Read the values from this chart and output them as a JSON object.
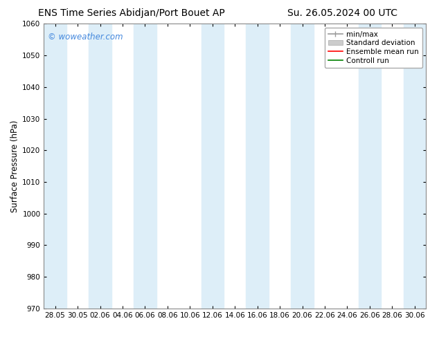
{
  "title_left": "ENS Time Series Abidjan/Port Bouet AP",
  "title_right": "Su. 26.05.2024 00 UTC",
  "ylabel": "Surface Pressure (hPa)",
  "ylim": [
    970,
    1060
  ],
  "yticks": [
    970,
    980,
    990,
    1000,
    1010,
    1020,
    1030,
    1040,
    1050,
    1060
  ],
  "xlabel_ticks": [
    "28.05",
    "30.05",
    "02.06",
    "04.06",
    "06.06",
    "08.06",
    "10.06",
    "12.06",
    "14.06",
    "16.06",
    "18.06",
    "20.06",
    "22.06",
    "24.06",
    "26.06",
    "28.06",
    "30.06"
  ],
  "watermark": "© woweather.com",
  "bg_color": "#ffffff",
  "plot_bg_color": "#ffffff",
  "band_color": "#ddeef8",
  "legend_entries": [
    {
      "label": "min/max",
      "color": "#999999"
    },
    {
      "label": "Standard deviation",
      "color": "#cccccc"
    },
    {
      "label": "Ensemble mean run",
      "color": "red"
    },
    {
      "label": "Controll run",
      "color": "green"
    }
  ],
  "title_fontsize": 10,
  "tick_fontsize": 7.5,
  "ylabel_fontsize": 8.5,
  "legend_fontsize": 7.5
}
